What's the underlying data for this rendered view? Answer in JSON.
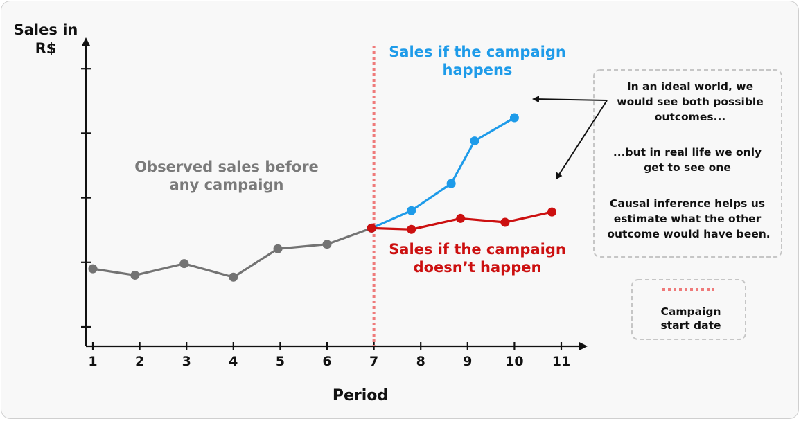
{
  "chart_data": {
    "type": "line",
    "ylabel": [
      "Sales in",
      "R$"
    ],
    "xlabel": "Period",
    "x_ticks": [
      "1",
      "2",
      "3",
      "4",
      "5",
      "6",
      "7",
      "8",
      "9",
      "10",
      "11"
    ],
    "series": [
      {
        "key": "observed",
        "color": "#737373",
        "points": [
          [
            1,
            1.9
          ],
          [
            1.9,
            1.8
          ],
          [
            2.95,
            1.98
          ],
          [
            4.0,
            1.77
          ],
          [
            4.95,
            2.21
          ],
          [
            6.0,
            2.28
          ],
          [
            6.95,
            2.53
          ]
        ]
      },
      {
        "key": "campaign",
        "color": "#1e9be9",
        "points": [
          [
            6.95,
            2.53
          ],
          [
            7.8,
            2.8
          ],
          [
            8.65,
            3.22
          ],
          [
            9.15,
            3.88
          ],
          [
            10.0,
            4.24
          ]
        ]
      },
      {
        "key": "no_campaign",
        "color": "#cc1010",
        "points": [
          [
            6.95,
            2.53
          ],
          [
            7.8,
            2.51
          ],
          [
            8.85,
            2.68
          ],
          [
            9.8,
            2.62
          ],
          [
            10.8,
            2.78
          ]
        ]
      }
    ],
    "campaign_start": 7,
    "annotations": {
      "observed": [
        "Observed sales before",
        "any campaign"
      ],
      "campaign": [
        "Sales if the campaign",
        "happens"
      ],
      "no_campaign": [
        "Sales if the campaign",
        "doesn’t happen"
      ]
    },
    "note": [
      "In an ideal world, we",
      "would see both possible",
      "outcomes...",
      "...but in real life we only",
      "get to see one",
      "Causal inference helps us",
      "estimate what the other",
      "outcome would have been."
    ],
    "legend": [
      "Campaign",
      "start date"
    ]
  }
}
